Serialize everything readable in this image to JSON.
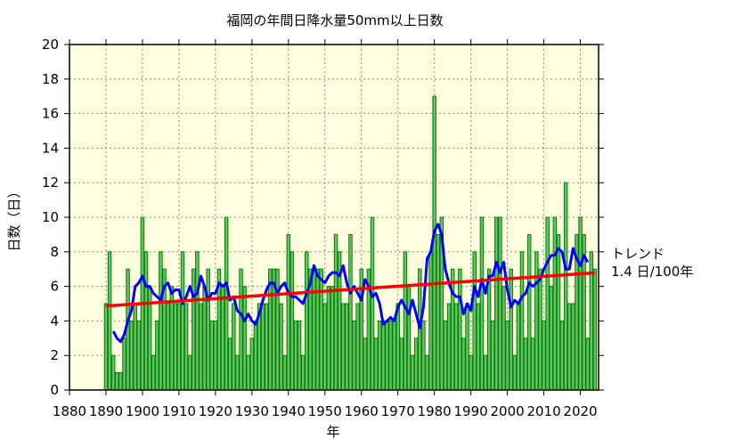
{
  "chart_data": {
    "type": "bar",
    "title": "福岡の年間日降水量50mm以上日数",
    "xlabel": "年",
    "ylabel": "日数（日）",
    "xlim": [
      1880,
      2025
    ],
    "ylim": [
      0,
      20
    ],
    "x_ticks": [
      1880,
      1890,
      1900,
      1910,
      1920,
      1930,
      1940,
      1950,
      1960,
      1970,
      1980,
      1990,
      2000,
      2010,
      2020
    ],
    "y_ticks": [
      0,
      2,
      4,
      6,
      8,
      10,
      12,
      14,
      16,
      18,
      20
    ],
    "grid": true,
    "background_color": "#ffffe0",
    "bar_color": "#66c266",
    "bar_edge_color": "#008000",
    "moving_average_color": "#0000ff",
    "trend_color": "#ff0000",
    "moving_average_window": 5,
    "years_start": 1890,
    "values": [
      5,
      8,
      2,
      1,
      1,
      3,
      7,
      4,
      5,
      4,
      10,
      8,
      6,
      2,
      4,
      8,
      7,
      5,
      6,
      5,
      5,
      8,
      5,
      2,
      7,
      8,
      5,
      6,
      7,
      4,
      4,
      7,
      6,
      10,
      3,
      5,
      2,
      7,
      6,
      2,
      3,
      4,
      5,
      5,
      5,
      7,
      7,
      7,
      5,
      2,
      9,
      8,
      4,
      4,
      2,
      8,
      7,
      7,
      7,
      7,
      5,
      6,
      6,
      9,
      8,
      5,
      5,
      9,
      4,
      5,
      7,
      3,
      7,
      10,
      3,
      4,
      4,
      4,
      4,
      4,
      5,
      3,
      8,
      6,
      2,
      3,
      7,
      4,
      2,
      8,
      17,
      9,
      10,
      4,
      5,
      7,
      5,
      7,
      3,
      5,
      2,
      8,
      5,
      10,
      2,
      7,
      4,
      10,
      10,
      6,
      4,
      7,
      2,
      5,
      8,
      3,
      9,
      3,
      8,
      7,
      4,
      10,
      6,
      10,
      9,
      4,
      12,
      5,
      5,
      9,
      10,
      9,
      3,
      8,
      7
    ],
    "trend": {
      "label": "トレンド",
      "value_text": "1.4 日/100年"
    }
  }
}
